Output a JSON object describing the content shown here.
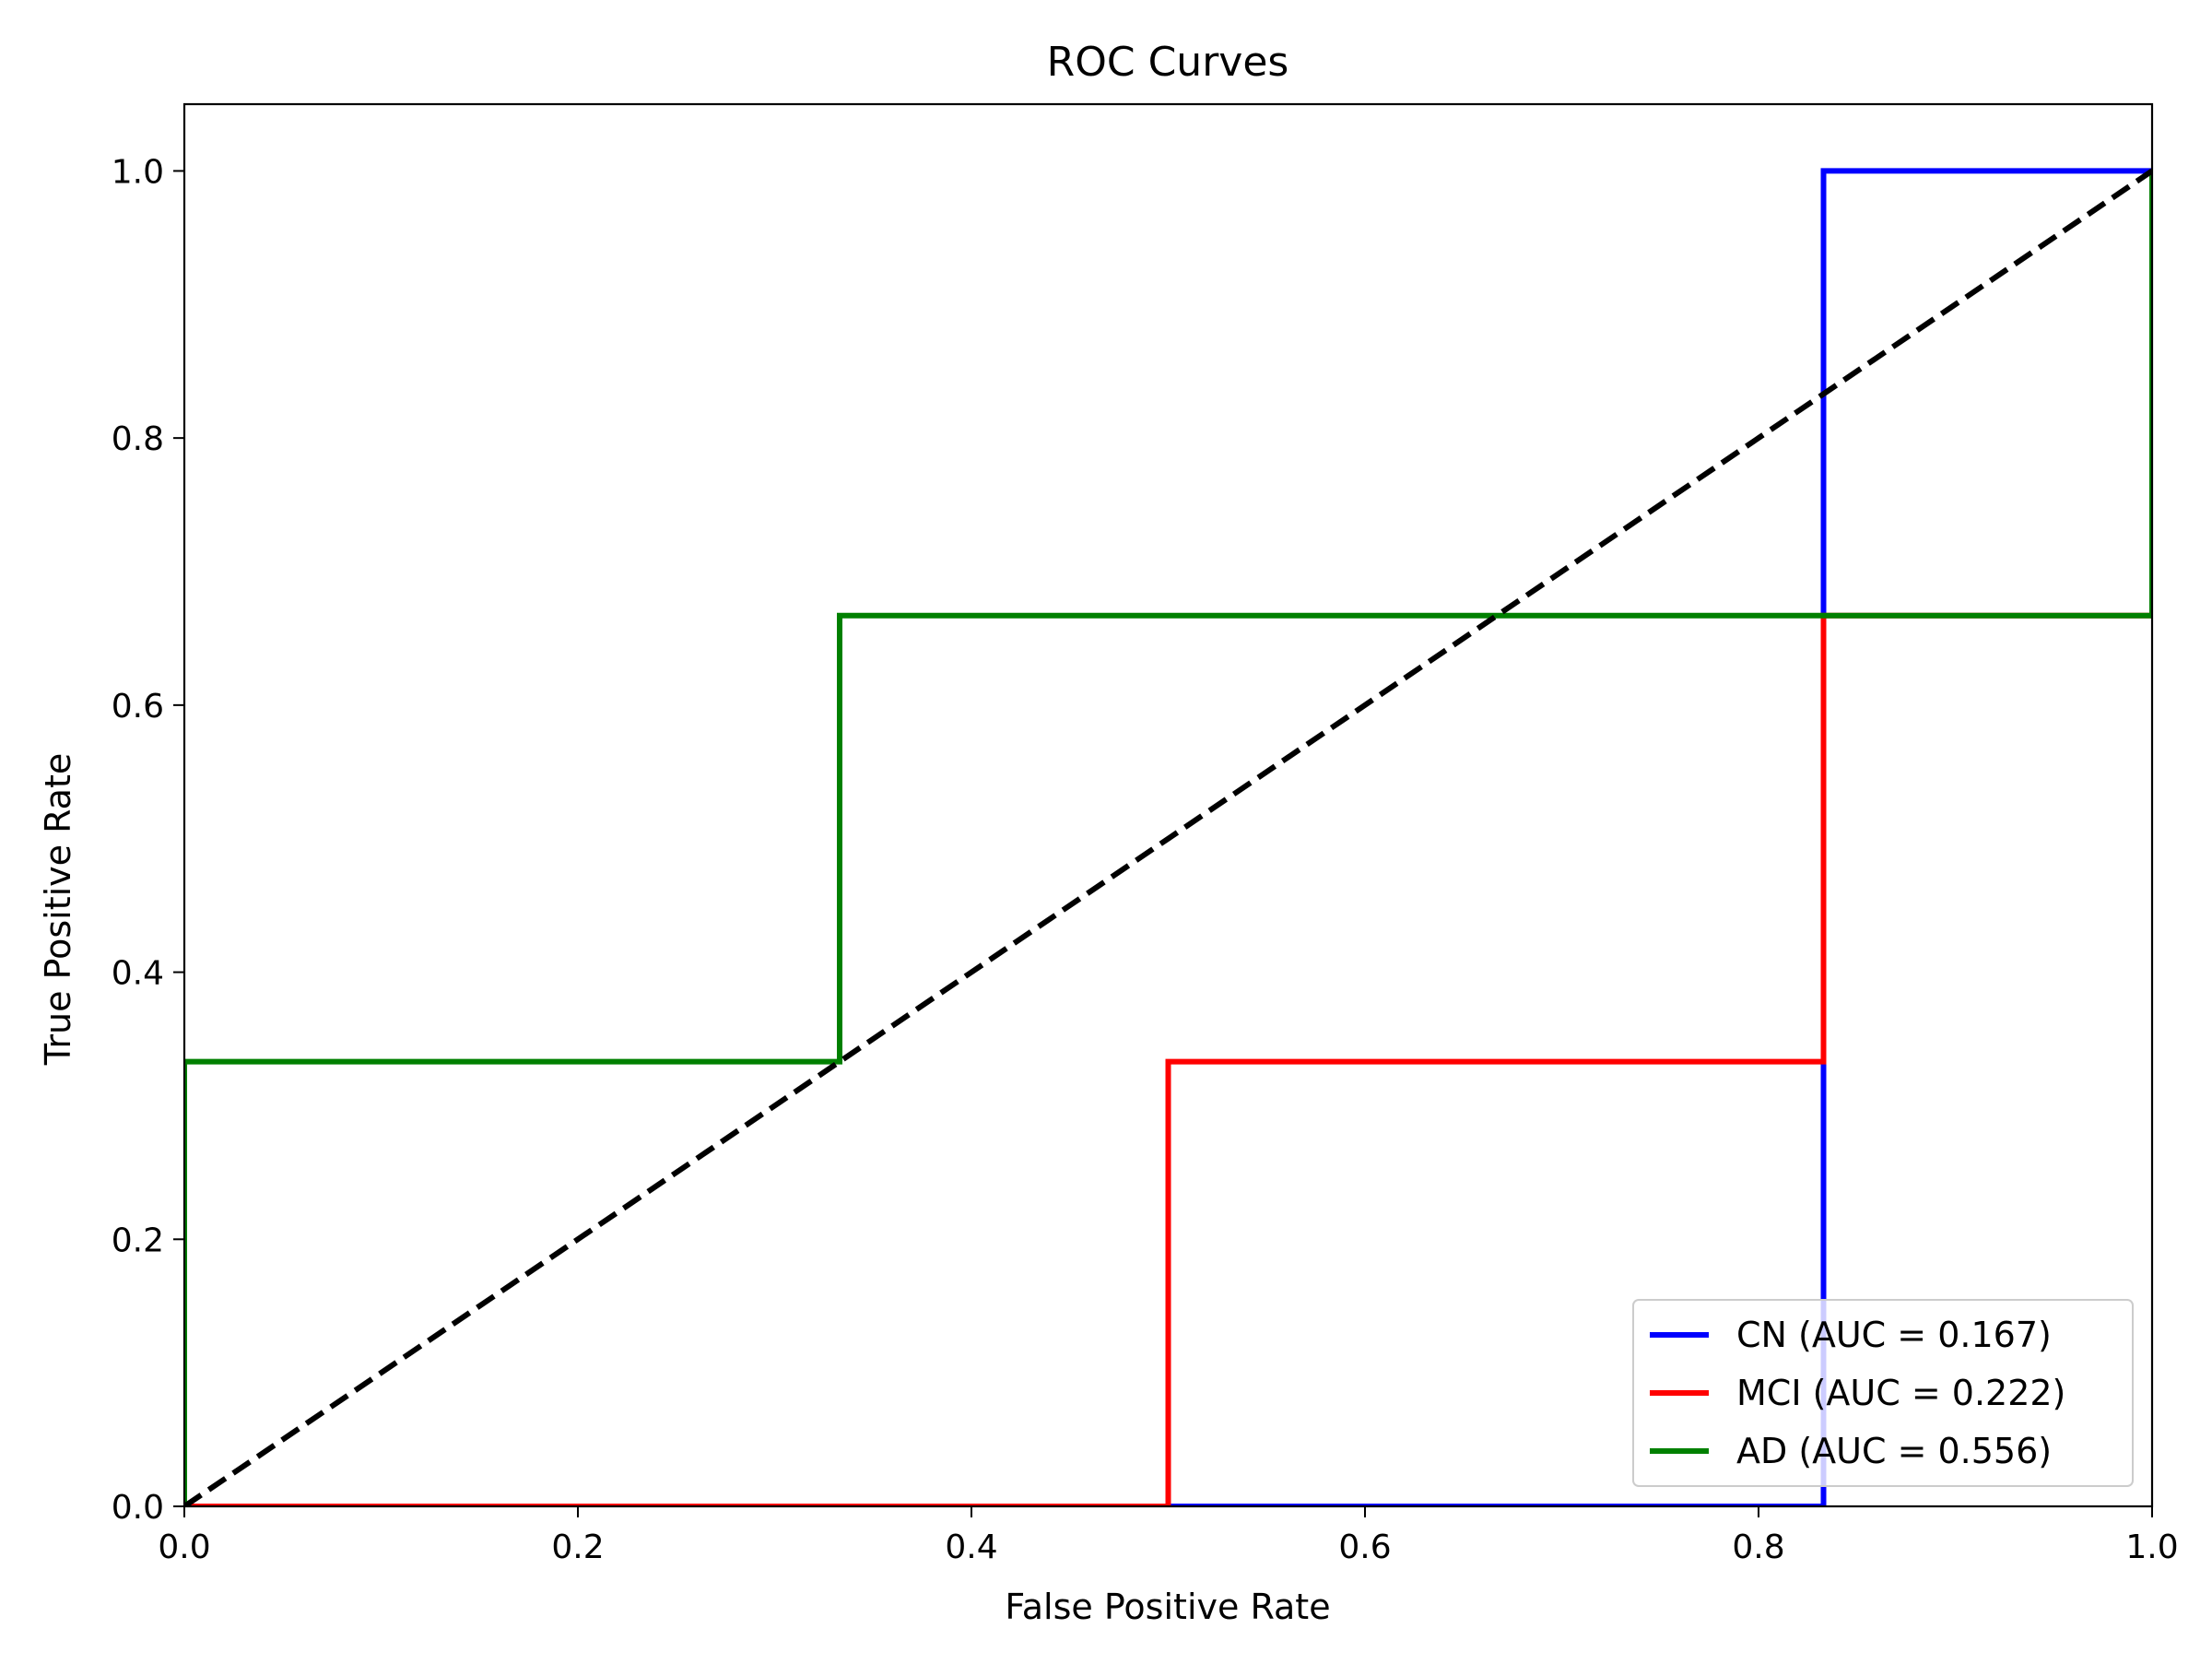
{
  "chart_data": {
    "type": "line",
    "title": "ROC Curves",
    "xlabel": "False Positive Rate",
    "ylabel": "True Positive Rate",
    "xlim": [
      0.0,
      1.0
    ],
    "ylim": [
      0.0,
      1.05
    ],
    "xticks": [
      0.0,
      0.2,
      0.4,
      0.6,
      0.8,
      1.0
    ],
    "yticks": [
      0.0,
      0.2,
      0.4,
      0.6,
      0.8,
      1.0
    ],
    "xtick_labels": [
      "0.0",
      "0.2",
      "0.4",
      "0.6",
      "0.8",
      "1.0"
    ],
    "ytick_labels": [
      "0.0",
      "0.2",
      "0.4",
      "0.6",
      "0.8",
      "1.0"
    ],
    "grid": false,
    "legend_position": "lower-right",
    "series": [
      {
        "name": "CN (AUC = 0.167)",
        "color": "#0000ff",
        "x": [
          0.0,
          0.833,
          0.833,
          1.0
        ],
        "y": [
          0.0,
          0.0,
          1.0,
          1.0
        ]
      },
      {
        "name": "MCI (AUC = 0.222)",
        "color": "#ff0000",
        "x": [
          0.0,
          0.5,
          0.5,
          0.833,
          0.833,
          1.0
        ],
        "y": [
          0.0,
          0.0,
          0.333,
          0.333,
          0.667,
          0.667
        ]
      },
      {
        "name": "AD (AUC = 0.556)",
        "color": "#008000",
        "x": [
          0.0,
          0.0,
          0.333,
          0.333,
          1.0,
          1.0
        ],
        "y": [
          0.0,
          0.333,
          0.333,
          0.667,
          0.667,
          1.0
        ]
      }
    ],
    "reference_line": {
      "color": "#000000",
      "style": "dashed",
      "x": [
        0.0,
        1.0
      ],
      "y": [
        0.0,
        1.0
      ]
    }
  }
}
